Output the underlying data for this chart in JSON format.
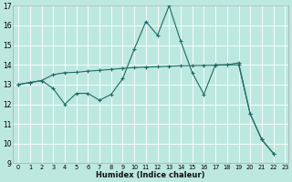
{
  "xlabel": "Humidex (Indice chaleur)",
  "xlim": [
    0,
    23
  ],
  "ylim": [
    9,
    17
  ],
  "yticks": [
    9,
    10,
    11,
    12,
    13,
    14,
    15,
    16,
    17
  ],
  "xticks": [
    0,
    1,
    2,
    3,
    4,
    5,
    6,
    7,
    8,
    9,
    10,
    11,
    12,
    13,
    14,
    15,
    16,
    17,
    18,
    19,
    20,
    21,
    22,
    23
  ],
  "bg_color": "#bde8e0",
  "grid_color": "#ffffff",
  "line_color": "#1e6b62",
  "jagged_x": [
    0,
    1,
    2,
    3,
    4,
    5,
    6,
    7,
    8,
    9,
    10,
    11,
    12,
    13,
    14,
    15,
    16,
    17,
    18,
    19,
    20,
    21,
    22
  ],
  "jagged_y": [
    13,
    13.1,
    13.2,
    12.8,
    12.0,
    12.55,
    12.55,
    12.2,
    12.5,
    13.3,
    14.8,
    16.2,
    15.5,
    17.0,
    15.2,
    13.6,
    12.5,
    14.0,
    14.0,
    14.1,
    11.5,
    10.2,
    9.5
  ],
  "smooth_x": [
    0,
    1,
    2,
    3,
    4,
    5,
    6,
    7,
    8,
    9,
    10,
    11,
    12,
    13,
    14,
    15,
    16,
    17,
    18,
    19,
    20,
    21,
    22
  ],
  "smooth_y": [
    13,
    13.1,
    13.2,
    13.5,
    13.6,
    13.62,
    13.68,
    13.72,
    13.77,
    13.82,
    13.86,
    13.88,
    13.9,
    13.93,
    13.95,
    13.96,
    13.97,
    13.98,
    14.0,
    14.0,
    11.5,
    10.2,
    9.5
  ]
}
